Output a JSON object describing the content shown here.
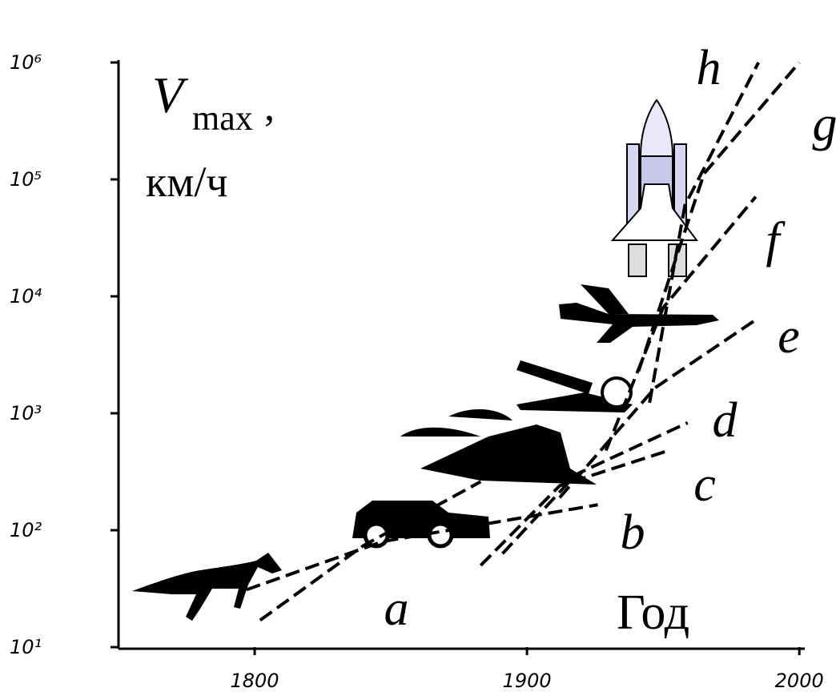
{
  "chart_data": {
    "type": "line",
    "y_label": {
      "symbol": "V",
      "subscript": "max",
      "separator": ",",
      "unit": "км/ч"
    },
    "x_label": "Год",
    "xlim": [
      1750,
      2002
    ],
    "xticks": [
      1800,
      1900,
      2000
    ],
    "ylim": [
      10,
      1000000
    ],
    "log_y": true,
    "yticks": [
      {
        "value": 10,
        "label": "10¹"
      },
      {
        "value": 100,
        "label": "10²"
      },
      {
        "value": 1000,
        "label": "10³"
      },
      {
        "value": 10000,
        "label": "10⁴"
      },
      {
        "value": 100000,
        "label": "10⁵"
      },
      {
        "value": 1000000,
        "label": "10⁶"
      }
    ],
    "series": [
      {
        "name": "a",
        "color": "#000000",
        "x": [
          1802,
          1840,
          1883
        ],
        "values": [
          17,
          74,
          260
        ]
      },
      {
        "name": "b",
        "color": "#000000",
        "x": [
          1797,
          1847,
          1926
        ],
        "values": [
          31,
          80,
          165
        ]
      },
      {
        "name": "c",
        "color": "#000000",
        "x": [
          1883,
          1912,
          1952
        ],
        "values": [
          50,
          240,
          480
        ]
      },
      {
        "name": "d",
        "color": "#000000",
        "x": [
          1891,
          1918,
          1959
        ],
        "values": [
          63,
          300,
          830
        ]
      },
      {
        "name": "e",
        "color": "#000000",
        "x": [
          1912,
          1947,
          1984
        ],
        "values": [
          190,
          1650,
          6300
        ]
      },
      {
        "name": "f",
        "color": "#000000",
        "x": [
          1929,
          1950,
          1984
        ],
        "values": [
          480,
          8000,
          71000
        ]
      },
      {
        "name": "g",
        "color": "#000000",
        "x": [
          1941,
          1965,
          2000
        ],
        "values": [
          2300,
          112000,
          1000000
        ]
      },
      {
        "name": "h",
        "color": "#000000",
        "x": [
          1945,
          1958,
          1985
        ],
        "values": [
          1230,
          60000,
          1000000
        ]
      }
    ]
  }
}
